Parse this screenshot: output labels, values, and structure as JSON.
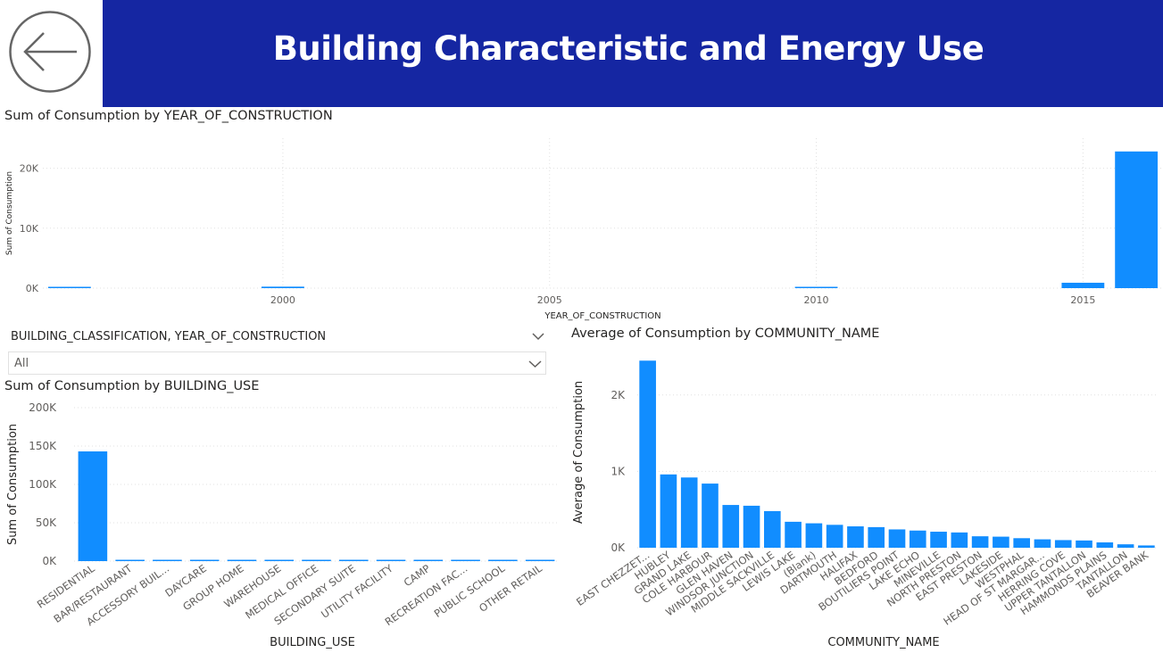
{
  "header": {
    "title": "Building Characteristic and Energy Use",
    "back_icon": "back-arrow-icon"
  },
  "slicer": {
    "label": "BUILDING_CLASSIFICATION, YEAR_OF_CONSTRUCTION",
    "value": "All"
  },
  "colors": {
    "bar": "#118dff",
    "header": "#1526a2",
    "grid": "#e0e0e0",
    "axis_text": "#605e5c"
  },
  "chart_data": [
    {
      "type": "bar",
      "title": "Sum of Consumption by YEAR_OF_CONSTRUCTION",
      "xlabel": "YEAR_OF_CONSTRUCTION",
      "ylabel": "Sum of Consumption",
      "x_ticks": [
        "2000",
        "2005",
        "2010",
        "2015"
      ],
      "y_ticks": [
        "0K",
        "10K",
        "20K"
      ],
      "ylim": [
        0,
        25000
      ],
      "xlim": [
        1995.5,
        2016.5
      ],
      "x": [
        1996,
        2000,
        2010,
        2015,
        2016
      ],
      "values": [
        150,
        250,
        200,
        900,
        22800
      ]
    },
    {
      "type": "bar",
      "title": "Sum of Consumption by BUILDING_USE",
      "xlabel": "BUILDING_USE",
      "ylabel": "Sum of Consumption",
      "y_ticks": [
        "0K",
        "50K",
        "100K",
        "150K",
        "200K"
      ],
      "ylim": [
        0,
        200000
      ],
      "categories": [
        "RESIDENTIAL",
        "BAR/RESTAURANT",
        "ACCESSORY BUIL...",
        "DAYCARE",
        "GROUP HOME",
        "WAREHOUSE",
        "MEDICAL OFFICE",
        "SECONDARY SUITE",
        "UTILITY FACILITY",
        "CAMP",
        "RECREATION FAC...",
        "PUBLIC SCHOOL",
        "OTHER RETAIL"
      ],
      "values": [
        143000,
        700,
        600,
        600,
        500,
        500,
        500,
        400,
        400,
        400,
        300,
        300,
        300
      ]
    },
    {
      "type": "bar",
      "title": "Average of Consumption by COMMUNITY_NAME",
      "xlabel": "COMMUNITY_NAME",
      "ylabel": "Average of Consumption",
      "y_ticks": [
        "0K",
        "1K",
        "2K"
      ],
      "ylim": [
        0,
        2500
      ],
      "categories": [
        "EAST CHEZZET...",
        "HUBLEY",
        "GRAND LAKE",
        "COLE HARBOUR",
        "GLEN HAVEN",
        "WINDSOR JUNCTION",
        "MIDDLE SACKVILLE",
        "LEWIS LAKE",
        "(Blank)",
        "DARTMOUTH",
        "HALIFAX",
        "BEDFORD",
        "BOUTILIERS POINT",
        "LAKE ECHO",
        "MINEVILLE",
        "NORTH PRESTON",
        "EAST PRESTON",
        "LAKESIDE",
        "WESTPHAL",
        "HEAD OF ST MARGAR...",
        "HERRING COVE",
        "UPPER TANTALLON",
        "HAMMONDS PLAINS",
        "TANTALLON",
        "BEAVER BANK"
      ],
      "values": [
        2450,
        960,
        920,
        840,
        560,
        550,
        480,
        340,
        320,
        300,
        280,
        270,
        240,
        225,
        210,
        200,
        150,
        145,
        125,
        110,
        100,
        95,
        70,
        45,
        30
      ]
    }
  ]
}
